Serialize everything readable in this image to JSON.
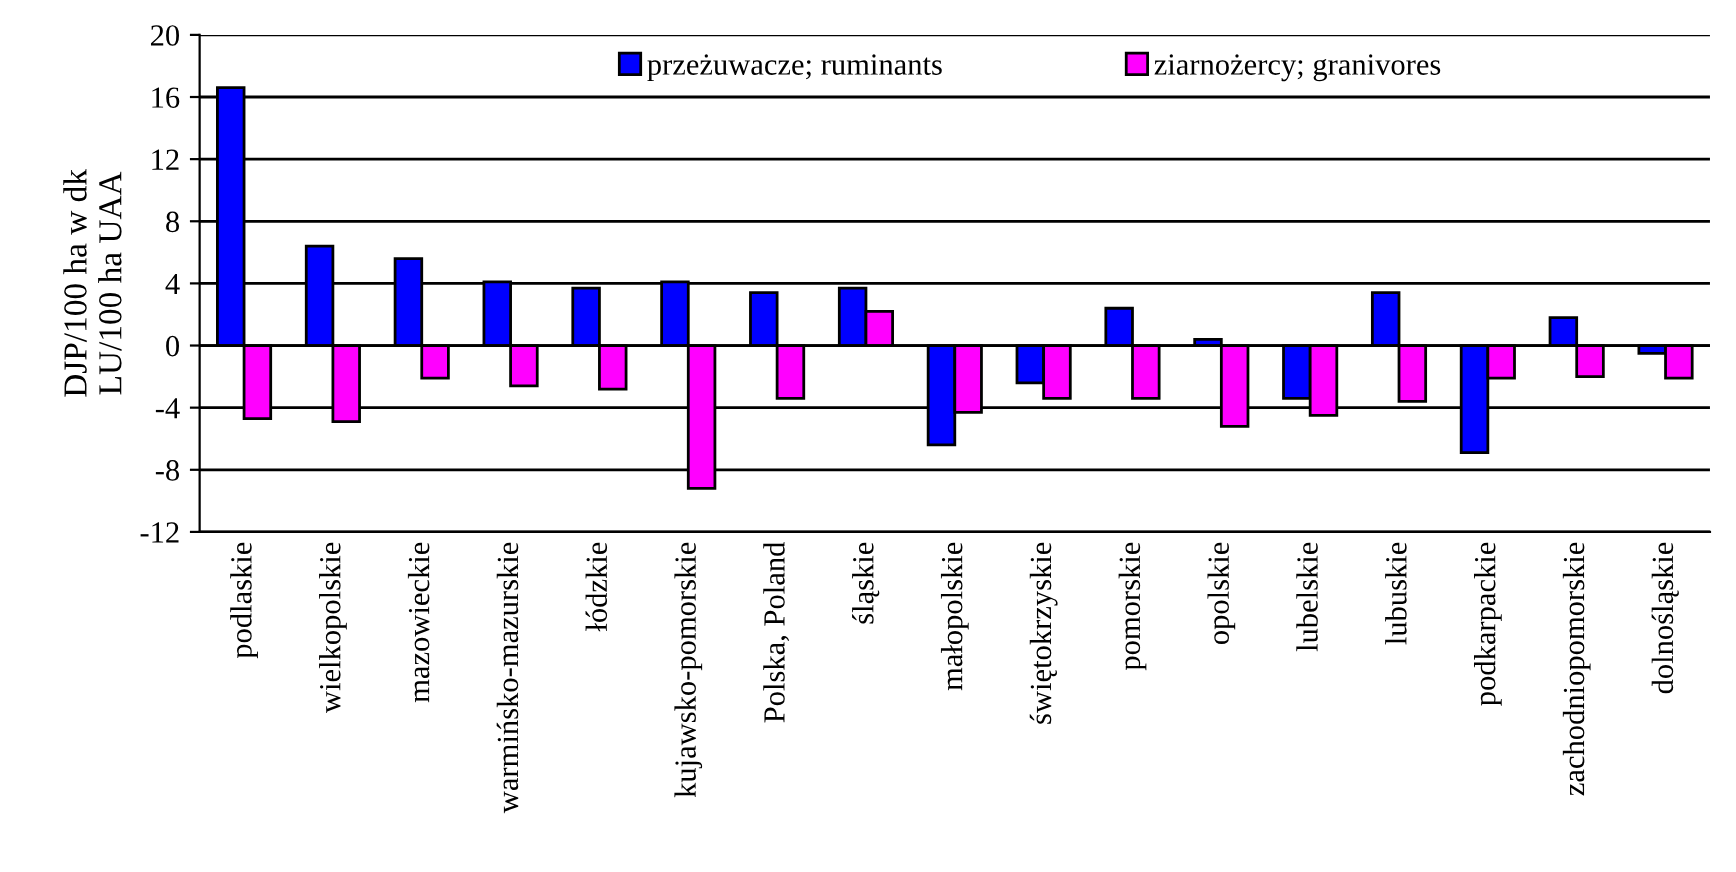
{
  "chart_data": {
    "type": "bar",
    "ylabel": "DJP/100 ha w dk\nLU/100 ha UAA",
    "categories": [
      "podlaskie",
      "wielkopolskie",
      "mazowieckie",
      "warmińsko-mazurskie",
      "łódzkie",
      "kujawsko-pomorskie",
      "Polska, Poland",
      "śląskie",
      "małopolskie",
      "świętokrzyskie",
      "pomorskie",
      "opolskie",
      "lubelskie",
      "lubuskie",
      "podkarpackie",
      "zachodniopomorskie",
      "dolnośląskie"
    ],
    "series": [
      {
        "name": "przeżuwacze; ruminants",
        "color": "#0000ff",
        "values": [
          16.6,
          6.4,
          5.6,
          4.1,
          3.7,
          4.1,
          3.4,
          3.7,
          -6.4,
          -2.4,
          2.4,
          0.4,
          -3.4,
          3.4,
          -6.9,
          1.8,
          -0.5
        ]
      },
      {
        "name": "ziarnożercy; granivores",
        "color": "#ff00ff",
        "values": [
          -4.7,
          -4.9,
          -2.1,
          -2.6,
          -2.8,
          -9.2,
          -3.4,
          2.2,
          -4.3,
          -3.4,
          -3.4,
          -5.2,
          -4.5,
          -3.6,
          -2.1,
          -2.0,
          -2.1
        ]
      }
    ],
    "ylim": [
      -12,
      20
    ],
    "yticks": [
      -12,
      -8,
      -4,
      0,
      4,
      8,
      12,
      16,
      20
    ],
    "grid": "y",
    "legend": "top"
  }
}
